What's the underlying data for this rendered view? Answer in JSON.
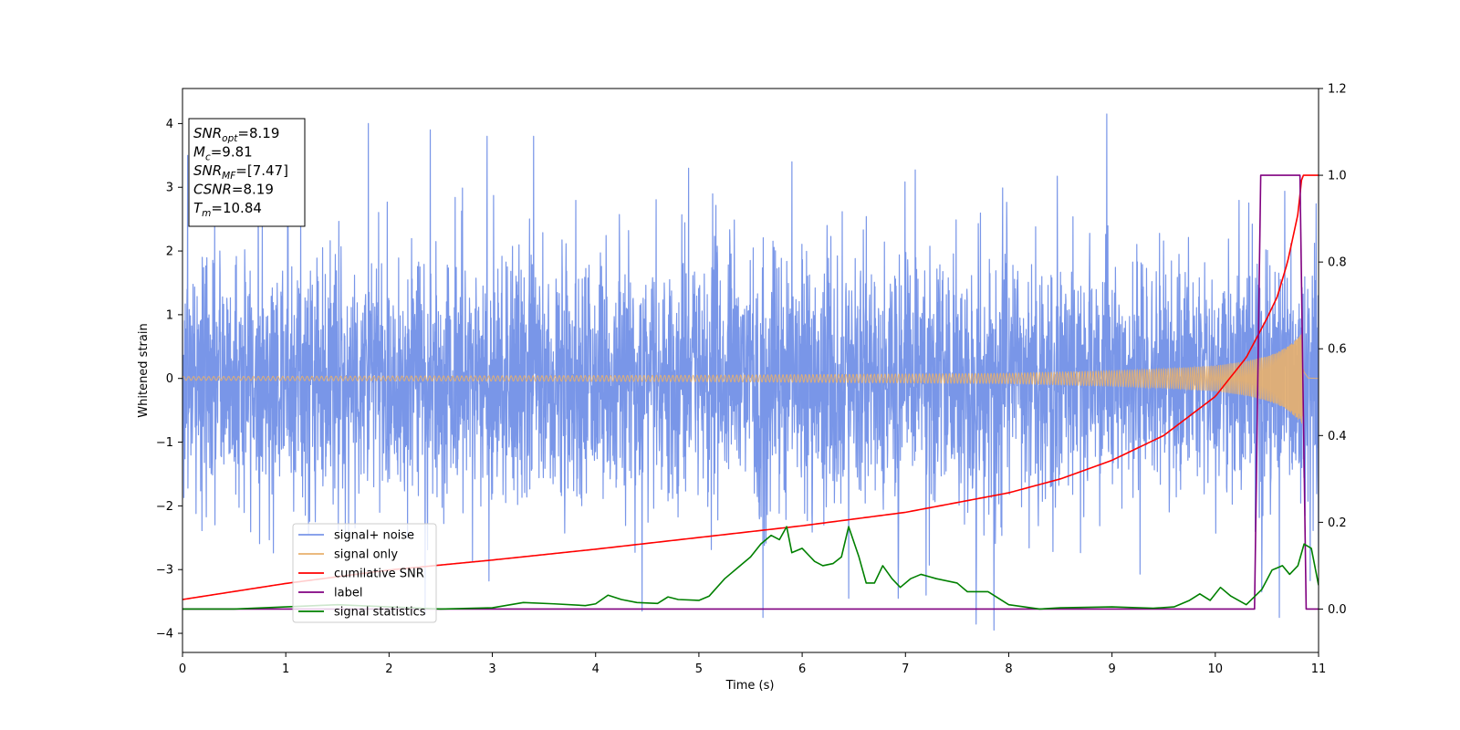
{
  "chart_data": {
    "type": "line",
    "xlabel": "Time (s)",
    "ylabel": "Whitened strain",
    "xlim": [
      0,
      11
    ],
    "ylim": [
      -4.3,
      4.55
    ],
    "y2lim": [
      -0.1,
      1.2
    ],
    "x_ticks": [
      0,
      1,
      2,
      3,
      4,
      5,
      6,
      7,
      8,
      9,
      10,
      11
    ],
    "y_ticks": [
      -4,
      -3,
      -2,
      -1,
      0,
      1,
      2,
      3,
      4
    ],
    "y_tick_labels": [
      "−4",
      "−3",
      "−2",
      "−1",
      "0",
      "1",
      "2",
      "3",
      "4"
    ],
    "y2_ticks": [
      0.0,
      0.2,
      0.4,
      0.6,
      0.8,
      1.0,
      1.2
    ],
    "y2_tick_labels": [
      "0.0",
      "0.2",
      "0.4",
      "0.6",
      "0.8",
      "1.0",
      "1.2"
    ],
    "grid": false,
    "legend_position": "lower-left",
    "info_box": [
      {
        "name": "SNR",
        "sub": "opt",
        "value": "=8.19"
      },
      {
        "name": "M",
        "sub": "c",
        "value": "=9.81"
      },
      {
        "name": "SNR",
        "sub": "MF",
        "value": "=[7.47]"
      },
      {
        "name": "CSNR",
        "sub": "",
        "value": "=8.19"
      },
      {
        "name": "T",
        "sub": "m",
        "value": "=10.84"
      }
    ],
    "series": [
      {
        "name": "signal+ noise",
        "axis": "left",
        "color": "#7996e8",
        "style": "noise",
        "base_amplitude": 1.0,
        "noise_spikes": [
          [
            0.05,
            3.5
          ],
          [
            1.02,
            3.6
          ],
          [
            1.8,
            4.0
          ],
          [
            2.35,
            -3.7
          ],
          [
            2.4,
            3.9
          ],
          [
            2.95,
            3.8
          ],
          [
            3.4,
            3.8
          ],
          [
            4.45,
            -3.65
          ],
          [
            4.9,
            3.3
          ],
          [
            5.62,
            -3.75
          ],
          [
            5.9,
            3.4
          ],
          [
            6.45,
            -3.45
          ],
          [
            6.93,
            -3.45
          ],
          [
            7.2,
            -3.4
          ],
          [
            8.95,
            4.15
          ],
          [
            10.45,
            -3.35
          ],
          [
            10.62,
            -3.75
          ]
        ],
        "signal_envelope": [
          [
            0,
            0.03
          ],
          [
            5,
            0.05
          ],
          [
            8,
            0.08
          ],
          [
            9,
            0.12
          ],
          [
            9.5,
            0.15
          ],
          [
            10,
            0.2
          ],
          [
            10.3,
            0.27
          ],
          [
            10.5,
            0.35
          ],
          [
            10.6,
            0.41
          ],
          [
            10.7,
            0.5
          ],
          [
            10.75,
            0.57
          ],
          [
            10.8,
            0.64
          ],
          [
            10.83,
            0.7
          ],
          [
            10.84,
            0.72
          ],
          [
            10.86,
            0.35
          ],
          [
            10.9,
            0.02
          ],
          [
            11,
            0.0
          ]
        ]
      },
      {
        "name": "signal only",
        "axis": "left",
        "color": "#e8b06d",
        "style": "chirp",
        "envelope": [
          [
            0,
            0.03
          ],
          [
            5,
            0.05
          ],
          [
            8,
            0.08
          ],
          [
            9,
            0.12
          ],
          [
            9.5,
            0.15
          ],
          [
            10,
            0.2
          ],
          [
            10.3,
            0.27
          ],
          [
            10.5,
            0.35
          ],
          [
            10.6,
            0.41
          ],
          [
            10.7,
            0.5
          ],
          [
            10.75,
            0.57
          ],
          [
            10.8,
            0.64
          ],
          [
            10.83,
            0.7
          ],
          [
            10.84,
            0.72
          ],
          [
            10.86,
            0.35
          ],
          [
            10.9,
            0.02
          ],
          [
            11,
            0.0
          ]
        ]
      },
      {
        "name": "cumilative SNR",
        "axis": "right",
        "color": "#ff0000",
        "points": [
          [
            0,
            0.022
          ],
          [
            1,
            0.059
          ],
          [
            2,
            0.09
          ],
          [
            3,
            0.113
          ],
          [
            4,
            0.138
          ],
          [
            5,
            0.165
          ],
          [
            6,
            0.192
          ],
          [
            7,
            0.223
          ],
          [
            8,
            0.268
          ],
          [
            8.5,
            0.3
          ],
          [
            9,
            0.343
          ],
          [
            9.5,
            0.4
          ],
          [
            10,
            0.49
          ],
          [
            10.3,
            0.58
          ],
          [
            10.5,
            0.67
          ],
          [
            10.6,
            0.72
          ],
          [
            10.7,
            0.8
          ],
          [
            10.8,
            0.91
          ],
          [
            10.84,
            1.0
          ],
          [
            11,
            1.0
          ]
        ]
      },
      {
        "name": "label",
        "axis": "right",
        "color": "#800080",
        "points": [
          [
            0,
            0.0
          ],
          [
            10.38,
            0.0
          ],
          [
            10.44,
            1.0
          ],
          [
            10.82,
            1.0
          ],
          [
            10.88,
            0.0
          ],
          [
            11,
            0.0
          ]
        ]
      },
      {
        "name": "signal statistics",
        "axis": "right",
        "color": "#008000",
        "points": [
          [
            0,
            0.0
          ],
          [
            0.5,
            0.0
          ],
          [
            1.0,
            0.005
          ],
          [
            1.5,
            0.01
          ],
          [
            2.0,
            0.005
          ],
          [
            2.5,
            0.0
          ],
          [
            3.0,
            0.003
          ],
          [
            3.3,
            0.015
          ],
          [
            3.6,
            0.012
          ],
          [
            3.9,
            0.008
          ],
          [
            4.0,
            0.012
          ],
          [
            4.12,
            0.032
          ],
          [
            4.25,
            0.022
          ],
          [
            4.4,
            0.015
          ],
          [
            4.6,
            0.013
          ],
          [
            4.7,
            0.028
          ],
          [
            4.8,
            0.022
          ],
          [
            5.0,
            0.02
          ],
          [
            5.1,
            0.03
          ],
          [
            5.25,
            0.07
          ],
          [
            5.4,
            0.1
          ],
          [
            5.5,
            0.12
          ],
          [
            5.6,
            0.15
          ],
          [
            5.65,
            0.16
          ],
          [
            5.7,
            0.17
          ],
          [
            5.78,
            0.16
          ],
          [
            5.85,
            0.19
          ],
          [
            5.9,
            0.13
          ],
          [
            6.0,
            0.14
          ],
          [
            6.12,
            0.11
          ],
          [
            6.2,
            0.1
          ],
          [
            6.3,
            0.105
          ],
          [
            6.38,
            0.12
          ],
          [
            6.45,
            0.19
          ],
          [
            6.55,
            0.12
          ],
          [
            6.62,
            0.06
          ],
          [
            6.7,
            0.06
          ],
          [
            6.78,
            0.1
          ],
          [
            6.87,
            0.07
          ],
          [
            6.95,
            0.05
          ],
          [
            7.05,
            0.07
          ],
          [
            7.15,
            0.08
          ],
          [
            7.3,
            0.07
          ],
          [
            7.5,
            0.06
          ],
          [
            7.6,
            0.04
          ],
          [
            7.8,
            0.04
          ],
          [
            8.0,
            0.01
          ],
          [
            8.3,
            0.0
          ],
          [
            8.5,
            0.003
          ],
          [
            9.0,
            0.005
          ],
          [
            9.4,
            0.002
          ],
          [
            9.6,
            0.005
          ],
          [
            9.75,
            0.02
          ],
          [
            9.85,
            0.035
          ],
          [
            9.95,
            0.02
          ],
          [
            10.05,
            0.05
          ],
          [
            10.15,
            0.03
          ],
          [
            10.3,
            0.01
          ],
          [
            10.45,
            0.045
          ],
          [
            10.55,
            0.09
          ],
          [
            10.65,
            0.1
          ],
          [
            10.72,
            0.08
          ],
          [
            10.8,
            0.1
          ],
          [
            10.86,
            0.15
          ],
          [
            10.93,
            0.14
          ],
          [
            11.0,
            0.055
          ]
        ]
      }
    ]
  }
}
